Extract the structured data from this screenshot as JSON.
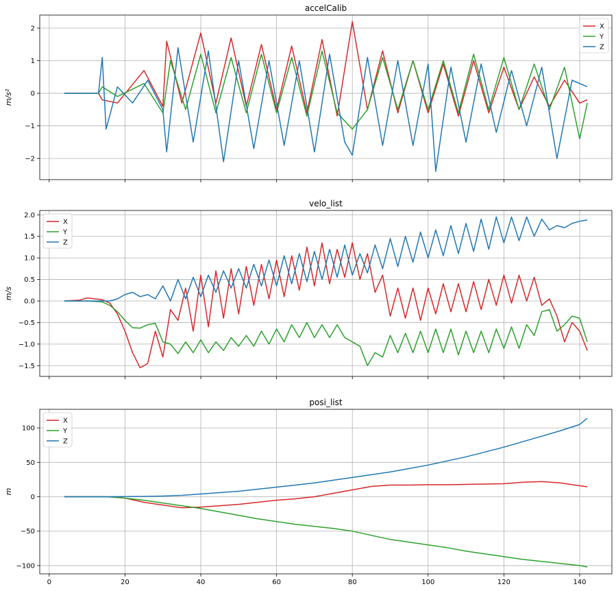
{
  "chart_data": [
    {
      "type": "line",
      "title": "accelCalib",
      "xlabel": "",
      "ylabel": "m/s²",
      "xlim": [
        -2.5,
        148.5
      ],
      "ylim": [
        -2.65,
        2.4
      ],
      "xticks": [
        0,
        20,
        40,
        60,
        80,
        100,
        120,
        140
      ],
      "xtick_labels": [
        "",
        "",
        "",
        "",
        "",
        "",
        "",
        ""
      ],
      "yticks": [
        -2,
        -1,
        0,
        1,
        2
      ],
      "ytick_labels": [
        "−2",
        "−1",
        "0",
        "1",
        "2"
      ],
      "grid": true,
      "legend": "top-right",
      "series": [
        {
          "name": "X",
          "color": "#d62728",
          "x": [
            4,
            13,
            14,
            18,
            25,
            30,
            31,
            35,
            40,
            44,
            48,
            52,
            56,
            60,
            64,
            68,
            72,
            76,
            80,
            84,
            88,
            92,
            96,
            100,
            104,
            108,
            112,
            116,
            120,
            124,
            128,
            132,
            136,
            140,
            142
          ],
          "y": [
            0,
            0,
            -0.2,
            -0.3,
            0.7,
            -0.4,
            1.6,
            -0.3,
            1.85,
            -0.3,
            1.7,
            -0.4,
            1.5,
            -0.5,
            1.45,
            -0.6,
            1.65,
            -0.7,
            2.2,
            -0.5,
            1.3,
            -0.6,
            1.0,
            -0.6,
            0.9,
            -0.7,
            1.0,
            -0.6,
            0.8,
            -0.5,
            0.5,
            -0.4,
            0.4,
            -0.3,
            -0.2
          ]
        },
        {
          "name": "Y",
          "color": "#2ca02c",
          "x": [
            4,
            13,
            14,
            18,
            25,
            30,
            32,
            36,
            40,
            44,
            48,
            52,
            56,
            60,
            64,
            68,
            72,
            76,
            80,
            84,
            88,
            92,
            96,
            100,
            104,
            108,
            112,
            116,
            120,
            124,
            128,
            132,
            136,
            140,
            142
          ],
          "y": [
            0,
            0,
            0.2,
            -0.1,
            0.3,
            -0.6,
            1.0,
            -0.5,
            1.2,
            -0.6,
            1.1,
            -0.6,
            1.2,
            -0.6,
            1.1,
            -0.7,
            1.3,
            -0.6,
            -1.1,
            -0.5,
            1.1,
            -0.5,
            1.0,
            -0.5,
            1.0,
            -0.6,
            1.2,
            -0.5,
            1.1,
            -0.5,
            0.9,
            -0.5,
            0.8,
            -1.4,
            -0.3
          ]
        },
        {
          "name": "Z",
          "color": "#1f77b4",
          "x": [
            4,
            13,
            14,
            15,
            18,
            22,
            26,
            30,
            31,
            34,
            38,
            42,
            46,
            50,
            54,
            58,
            62,
            66,
            70,
            74,
            78,
            80,
            84,
            88,
            92,
            96,
            100,
            102,
            106,
            110,
            114,
            118,
            122,
            126,
            130,
            134,
            138,
            142
          ],
          "y": [
            0,
            0,
            1.1,
            -1.1,
            0.2,
            -0.3,
            0.4,
            -0.5,
            -1.8,
            1.4,
            -1.5,
            1.3,
            -2.1,
            1.0,
            -1.7,
            1.0,
            -1.6,
            1.0,
            -1.8,
            1.2,
            -1.5,
            -1.9,
            1.1,
            -1.6,
            1.0,
            -1.6,
            0.9,
            -2.4,
            0.8,
            -1.5,
            0.9,
            -1.2,
            0.7,
            -1.0,
            0.8,
            -2.0,
            0.4,
            0.2
          ]
        }
      ]
    },
    {
      "type": "line",
      "title": "velo_list",
      "xlabel": "",
      "ylabel": "m/s",
      "xlim": [
        -2.5,
        148.5
      ],
      "ylim": [
        -1.75,
        2.1
      ],
      "xticks": [
        0,
        20,
        40,
        60,
        80,
        100,
        120,
        140
      ],
      "xtick_labels": [
        "",
        "",
        "",
        "",
        "",
        "",
        "",
        ""
      ],
      "yticks": [
        -1.5,
        -1.0,
        -0.5,
        0.0,
        0.5,
        1.0,
        1.5,
        2.0
      ],
      "ytick_labels": [
        "−1.5",
        "−1.0",
        "−0.5",
        "0.0",
        "0.5",
        "1.0",
        "1.5",
        "2.0"
      ],
      "grid": true,
      "legend": "top-left",
      "series": [
        {
          "name": "X",
          "color": "#d62728",
          "x": [
            4,
            8,
            10,
            12,
            14,
            16,
            18,
            20,
            22,
            24,
            26,
            28,
            30,
            32,
            34,
            36,
            38,
            40,
            42,
            44,
            46,
            48,
            50,
            52,
            54,
            56,
            58,
            60,
            62,
            64,
            66,
            68,
            70,
            72,
            74,
            76,
            78,
            80,
            82,
            84,
            86,
            88,
            90,
            92,
            94,
            96,
            98,
            100,
            102,
            104,
            106,
            108,
            110,
            112,
            114,
            116,
            118,
            120,
            122,
            124,
            126,
            128,
            130,
            132,
            134,
            136,
            138,
            140,
            142
          ],
          "y": [
            0,
            0.02,
            0.07,
            0.05,
            0.03,
            -0.05,
            -0.3,
            -0.7,
            -1.2,
            -1.55,
            -1.45,
            -0.7,
            -1.3,
            -0.2,
            -0.45,
            0.3,
            -0.7,
            0.6,
            -0.6,
            0.7,
            -0.4,
            0.75,
            -0.3,
            0.8,
            -0.1,
            0.85,
            0.05,
            0.95,
            0.1,
            1.05,
            0.25,
            1.25,
            0.35,
            1.35,
            0.4,
            1.2,
            0.55,
            1.35,
            0.5,
            1.1,
            0.2,
            0.6,
            -0.35,
            0.3,
            -0.4,
            0.3,
            -0.45,
            0.3,
            -0.3,
            0.4,
            -0.25,
            0.4,
            -0.25,
            0.45,
            -0.2,
            0.5,
            -0.1,
            0.6,
            -0.05,
            0.6,
            0.0,
            0.55,
            -0.1,
            0.05,
            -0.35,
            -0.95,
            -0.5,
            -0.7,
            -1.15
          ]
        },
        {
          "name": "Y",
          "color": "#2ca02c",
          "x": [
            4,
            10,
            14,
            16,
            18,
            20,
            22,
            24,
            26,
            28,
            30,
            32,
            34,
            36,
            38,
            40,
            42,
            44,
            46,
            48,
            50,
            52,
            54,
            56,
            58,
            60,
            62,
            64,
            66,
            68,
            70,
            72,
            74,
            76,
            78,
            80,
            82,
            84,
            86,
            88,
            90,
            92,
            94,
            96,
            98,
            100,
            102,
            104,
            106,
            108,
            110,
            112,
            114,
            116,
            118,
            120,
            122,
            124,
            126,
            128,
            130,
            132,
            134,
            136,
            138,
            140,
            142
          ],
          "y": [
            0,
            0,
            -0.02,
            -0.1,
            -0.25,
            -0.45,
            -0.62,
            -0.63,
            -0.55,
            -0.52,
            -0.95,
            -1.0,
            -1.22,
            -0.95,
            -1.2,
            -0.9,
            -1.2,
            -0.95,
            -1.15,
            -0.85,
            -1.05,
            -0.8,
            -1.05,
            -0.7,
            -1.0,
            -0.65,
            -0.95,
            -0.55,
            -0.85,
            -0.5,
            -0.85,
            -0.55,
            -0.85,
            -0.55,
            -0.85,
            -0.95,
            -1.05,
            -1.5,
            -1.2,
            -1.3,
            -0.8,
            -1.2,
            -0.75,
            -1.2,
            -0.7,
            -1.2,
            -0.65,
            -1.2,
            -0.65,
            -1.25,
            -0.7,
            -1.2,
            -0.7,
            -1.2,
            -0.65,
            -1.1,
            -0.6,
            -1.1,
            -0.55,
            -0.8,
            -0.25,
            -0.2,
            -0.7,
            -0.55,
            -0.35,
            -0.4,
            -0.95
          ]
        },
        {
          "name": "Z",
          "color": "#1f77b4",
          "x": [
            4,
            12,
            14,
            16,
            18,
            20,
            22,
            24,
            26,
            28,
            30,
            32,
            34,
            36,
            38,
            40,
            42,
            44,
            46,
            48,
            50,
            52,
            54,
            56,
            58,
            60,
            62,
            64,
            66,
            68,
            70,
            72,
            74,
            76,
            78,
            80,
            82,
            84,
            86,
            88,
            90,
            92,
            94,
            96,
            98,
            100,
            102,
            104,
            106,
            108,
            110,
            112,
            114,
            116,
            118,
            120,
            122,
            124,
            126,
            128,
            130,
            132,
            134,
            136,
            138,
            140,
            142
          ],
          "y": [
            0,
            0,
            0.0,
            0.0,
            0.05,
            0.15,
            0.2,
            0.1,
            0.15,
            0.05,
            0.35,
            0.0,
            0.5,
            0.05,
            0.55,
            0.1,
            0.6,
            0.2,
            0.7,
            0.3,
            0.75,
            0.3,
            0.85,
            0.35,
            0.95,
            0.35,
            1.05,
            0.4,
            1.1,
            0.45,
            1.15,
            0.5,
            1.2,
            0.55,
            1.3,
            0.6,
            1.1,
            0.65,
            1.3,
            0.75,
            1.45,
            0.8,
            1.5,
            0.9,
            1.6,
            1.0,
            1.65,
            1.05,
            1.75,
            1.1,
            1.8,
            1.15,
            1.9,
            1.2,
            1.95,
            1.35,
            1.95,
            1.4,
            1.95,
            1.5,
            1.9,
            1.65,
            1.75,
            1.7,
            1.8,
            1.85,
            1.88
          ]
        }
      ]
    },
    {
      "type": "line",
      "title": "posi_list",
      "xlabel": "",
      "ylabel": "m",
      "xlim": [
        -2.5,
        148.5
      ],
      "ylim": [
        -112,
        127
      ],
      "xticks": [
        0,
        20,
        40,
        60,
        80,
        100,
        120,
        140
      ],
      "xtick_labels": [
        "0",
        "20",
        "40",
        "60",
        "80",
        "100",
        "120",
        "140"
      ],
      "yticks": [
        -100,
        -50,
        0,
        50,
        100
      ],
      "ytick_labels": [
        "−100",
        "−50",
        "0",
        "50",
        "100"
      ],
      "grid": true,
      "legend": "top-left",
      "series": [
        {
          "name": "X",
          "color": "#d62728",
          "x": [
            4,
            10,
            15,
            18,
            20,
            25,
            30,
            35,
            40,
            45,
            50,
            55,
            60,
            65,
            70,
            75,
            80,
            85,
            90,
            95,
            100,
            105,
            110,
            115,
            120,
            125,
            130,
            135,
            140,
            142
          ],
          "y": [
            0,
            0,
            0,
            -0.5,
            -2,
            -8,
            -12,
            -16,
            -15,
            -13,
            -11,
            -8,
            -5,
            -3,
            0,
            5,
            10,
            15,
            17,
            17,
            17.5,
            17.5,
            18,
            18.5,
            19,
            21,
            22,
            20,
            16,
            14.5
          ]
        },
        {
          "name": "Y",
          "color": "#2ca02c",
          "x": [
            4,
            10,
            15,
            20,
            25,
            30,
            35,
            40,
            45,
            50,
            55,
            60,
            65,
            70,
            75,
            80,
            85,
            90,
            95,
            100,
            105,
            110,
            115,
            120,
            125,
            130,
            135,
            140,
            142
          ],
          "y": [
            0,
            0,
            0,
            -2,
            -5,
            -9,
            -13,
            -17,
            -22,
            -27,
            -32,
            -36,
            -40,
            -43,
            -46,
            -50,
            -56,
            -62,
            -66,
            -70,
            -74,
            -79,
            -83,
            -87,
            -91,
            -94,
            -97,
            -100,
            -102
          ]
        },
        {
          "name": "Z",
          "color": "#1f77b4",
          "x": [
            4,
            10,
            15,
            20,
            25,
            30,
            35,
            40,
            45,
            50,
            55,
            60,
            65,
            70,
            75,
            80,
            85,
            90,
            95,
            100,
            105,
            110,
            115,
            120,
            125,
            130,
            135,
            140,
            142
          ],
          "y": [
            0,
            0,
            0,
            0.2,
            0.5,
            1,
            2,
            4,
            6,
            8,
            11,
            14,
            17,
            20,
            24,
            28,
            32,
            36,
            41,
            46,
            52,
            58,
            65,
            72,
            80,
            88,
            96,
            105,
            114
          ]
        }
      ]
    }
  ]
}
